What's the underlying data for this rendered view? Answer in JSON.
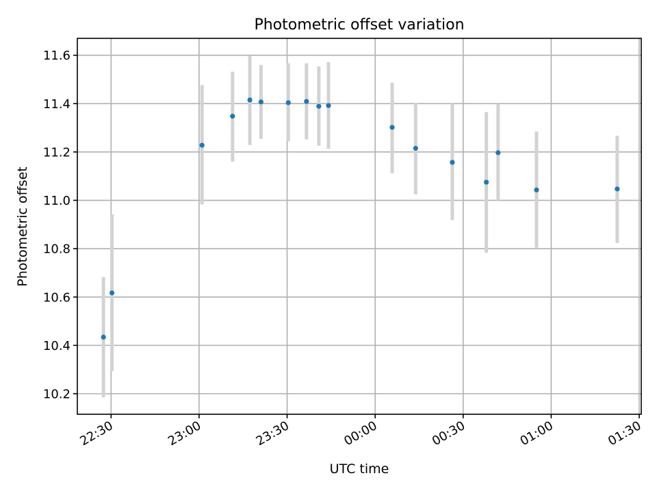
{
  "chart_data": {
    "type": "scatter",
    "title": "Photometric offset variation",
    "xlabel": "UTC time",
    "ylabel": "Photometric offset",
    "x_tick_labels": [
      "22:30",
      "23:00",
      "23:30",
      "00:00",
      "00:30",
      "01:00",
      "01:30"
    ],
    "y_tick_labels": [
      "10.2",
      "10.4",
      "10.6",
      "10.8",
      "11.0",
      "11.2",
      "11.4",
      "11.6"
    ],
    "x_ticks": [
      "22:30",
      "23:00",
      "23:30",
      "24:00",
      "24:30",
      "25:00",
      "25:30"
    ],
    "y_ticks": [
      10.2,
      10.4,
      10.6,
      10.8,
      11.0,
      11.2,
      11.4,
      11.6
    ],
    "xlim": [
      "22:18.5",
      "25:30.7"
    ],
    "ylim": [
      10.115,
      11.67
    ],
    "grid": true,
    "series": [
      {
        "points": [
          {
            "x": "22:27.4",
            "y": 10.434,
            "err_low": 10.185,
            "err_high": 10.683
          },
          {
            "x": "22:30.3",
            "y": 10.617,
            "err_low": 10.293,
            "err_high": 10.942
          },
          {
            "x": "23:01.0",
            "y": 11.228,
            "err_low": 10.983,
            "err_high": 11.477
          },
          {
            "x": "23:11.4",
            "y": 11.348,
            "err_low": 11.16,
            "err_high": 11.532
          },
          {
            "x": "23:17.3",
            "y": 11.415,
            "err_low": 11.229,
            "err_high": 11.599
          },
          {
            "x": "23:21.1",
            "y": 11.407,
            "err_low": 11.254,
            "err_high": 11.56
          },
          {
            "x": "23:30.4",
            "y": 11.404,
            "err_low": 11.244,
            "err_high": 11.567
          },
          {
            "x": "23:36.6",
            "y": 11.409,
            "err_low": 11.252,
            "err_high": 11.567
          },
          {
            "x": "23:40.8",
            "y": 11.389,
            "err_low": 11.226,
            "err_high": 11.554
          },
          {
            "x": "23:44.1",
            "y": 11.392,
            "err_low": 11.213,
            "err_high": 11.572
          },
          {
            "x": "24:05.8",
            "y": 11.302,
            "err_low": 11.112,
            "err_high": 11.487
          },
          {
            "x": "24:13.8",
            "y": 11.215,
            "err_low": 11.025,
            "err_high": 11.401
          },
          {
            "x": "24:26.3",
            "y": 11.157,
            "err_low": 10.918,
            "err_high": 11.4
          },
          {
            "x": "24:37.9",
            "y": 11.075,
            "err_low": 10.783,
            "err_high": 11.365
          },
          {
            "x": "24:41.9",
            "y": 11.197,
            "err_low": 11.0,
            "err_high": 11.399
          },
          {
            "x": "24:55.0",
            "y": 11.043,
            "err_low": 10.804,
            "err_high": 11.284
          },
          {
            "x": "25:22.5",
            "y": 11.047,
            "err_low": 10.823,
            "err_high": 11.267
          }
        ]
      }
    ],
    "colors": {
      "point": "#1f77b4",
      "errorbar": "#d3d3d3",
      "grid": "#b0b0b0",
      "axes": "#000000"
    }
  }
}
